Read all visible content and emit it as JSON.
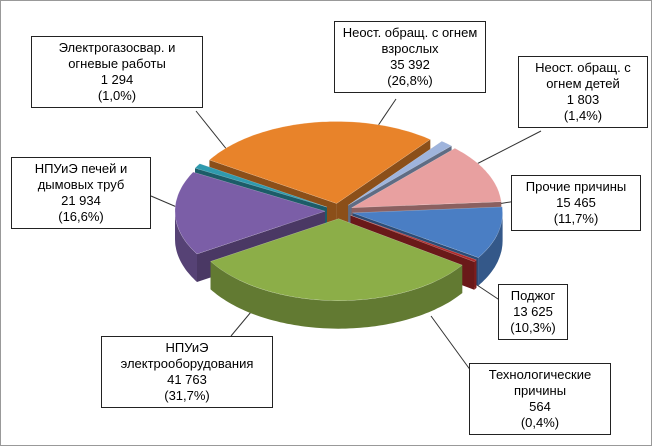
{
  "chart_data": {
    "type": "pie3d",
    "categories": [
      "Неост. обращ. с огнем взрослых",
      "Неост. обращ. с огнем детей",
      "Прочие причины",
      "Поджог",
      "Технологические причины",
      "НПУиЭ электрооборудования",
      "НПУиЭ печей и дымовых труб",
      "Электрогазосвар. и огневые работы"
    ],
    "values": [
      35392,
      1803,
      15465,
      13625,
      564,
      41763,
      21934,
      1294
    ],
    "value_labels": [
      "35 392",
      "1 803",
      "15 465",
      "13 625",
      "564",
      "41 763",
      "21 934",
      "1 294"
    ],
    "percents": [
      26.8,
      1.4,
      11.7,
      10.3,
      0.4,
      31.7,
      16.6,
      1.0
    ],
    "percent_labels": [
      "(26,8%)",
      "(1,4%)",
      "(11,7%)",
      "(10,3%)",
      "(0,4%)",
      "(31,7%)",
      "(16,6%)",
      "(1,0%)"
    ],
    "colors": [
      "#e8832a",
      "#9fb4dc",
      "#e8a0a0",
      "#4a7ec4",
      "#b02a2a",
      "#8cae48",
      "#7b5ea7",
      "#2f9aae"
    ]
  }
}
